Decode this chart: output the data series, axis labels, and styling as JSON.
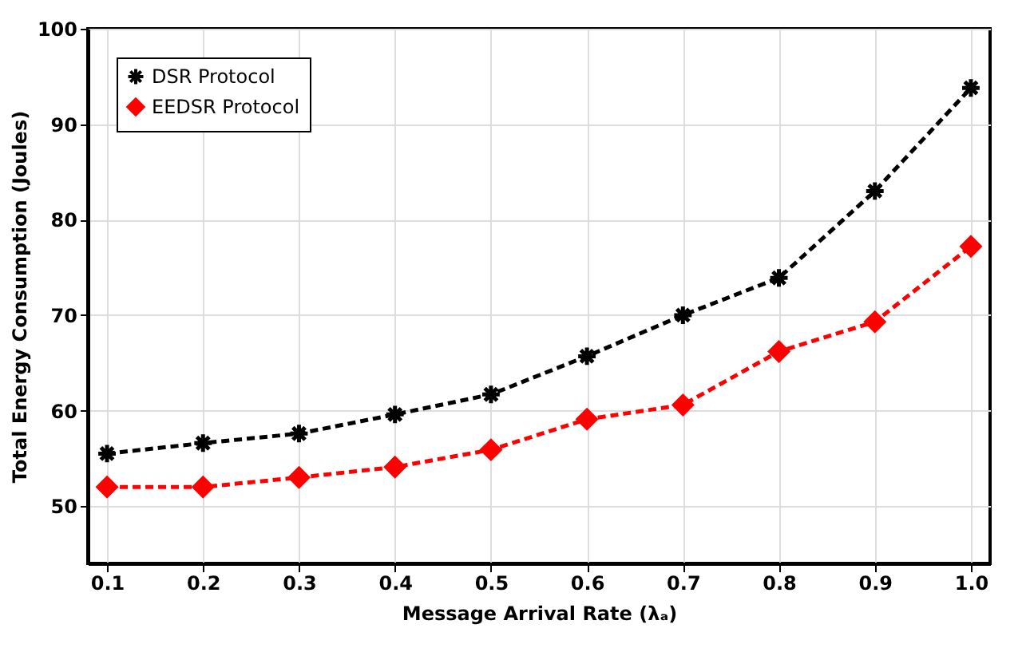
{
  "chart_data": {
    "type": "line",
    "xlabel": "Message Arrival Rate (λₐ)",
    "ylabel": "Total Energy Consumption (Joules)",
    "x": [
      0.1,
      0.2,
      0.3,
      0.4,
      0.5,
      0.6,
      0.7,
      0.8,
      0.9,
      1.0
    ],
    "series": [
      {
        "name": "DSR Protocol",
        "color": "#000000",
        "marker": "cross",
        "values": [
          55.5,
          56.6,
          57.6,
          59.6,
          61.7,
          65.7,
          70.0,
          73.9,
          83.0,
          93.8
        ]
      },
      {
        "name": "EEDSR Protocol",
        "color": "#ff0000",
        "marker": "diamond",
        "values": [
          52.0,
          52.0,
          53.0,
          54.1,
          55.9,
          59.1,
          60.6,
          66.2,
          69.3,
          77.2
        ]
      }
    ],
    "xlim": [
      0.08,
      1.02
    ],
    "ylim": [
      44,
      100
    ],
    "xticks": [
      0.1,
      0.2,
      0.3,
      0.4,
      0.5,
      0.6,
      0.7,
      0.8,
      0.9,
      {
        "value": 1.0,
        "label": "1.0"
      }
    ],
    "yticks": [
      50,
      60,
      70,
      80,
      90,
      100
    ],
    "grid": true,
    "legend": "top left",
    "line_style": "dashed"
  }
}
